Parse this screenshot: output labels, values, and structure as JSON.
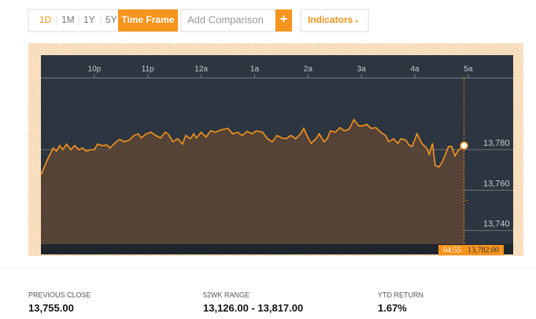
{
  "toolbar": {
    "ranges": [
      "1D",
      "1M",
      "1Y",
      "5Y"
    ],
    "time_frame": "Time Frame",
    "comparison_placeholder": "Add Comparison",
    "add": "+",
    "indicators": "Indicators"
  },
  "chart_data": {
    "type": "line",
    "color": "#f7941d",
    "x": [
      21.0,
      21.12,
      21.23,
      21.29,
      21.35,
      21.41,
      21.48,
      21.56,
      21.63,
      21.71,
      21.78,
      21.85,
      21.93,
      22.0,
      22.06,
      22.15,
      22.24,
      22.29,
      22.38,
      22.47,
      22.56,
      22.65,
      22.74,
      22.82,
      22.88,
      22.97,
      23.06,
      23.15,
      23.24,
      23.33,
      23.38,
      23.47,
      23.56,
      23.65,
      23.71,
      23.8,
      23.86,
      23.91,
      24.0,
      24.09,
      24.18,
      24.27,
      24.36,
      24.5,
      24.59,
      24.68,
      24.77,
      24.86,
      24.95,
      25.03,
      25.15,
      25.24,
      25.33,
      25.42,
      25.51,
      25.59,
      25.68,
      25.77,
      25.86,
      25.92,
      25.98,
      26.06,
      26.15,
      26.21,
      26.3,
      26.36,
      26.42,
      26.51,
      26.6,
      26.68,
      26.77,
      26.86,
      26.95,
      27.01,
      27.1,
      27.18,
      27.27,
      27.36,
      27.45,
      27.51,
      27.6,
      27.68,
      27.74,
      27.83,
      27.89,
      27.95,
      28.04,
      28.13,
      28.22,
      28.27,
      28.33,
      28.38,
      28.45,
      28.51,
      28.57,
      28.63,
      28.69,
      28.75,
      28.8,
      28.86,
      28.92
    ],
    "values": [
      13767.5,
      13774.9,
      13780.8,
      13779.2,
      13782.0,
      13780,
      13782.7,
      13780,
      13782.0,
      13780,
      13780.8,
      13779.2,
      13780,
      13780,
      13782.7,
      13782.0,
      13782.3,
      13780.8,
      13783.1,
      13785.1,
      13783.9,
      13784.7,
      13787.0,
      13787.8,
      13785.8,
      13787.8,
      13788.6,
      13787.0,
      13785.8,
      13788.6,
      13787.8,
      13783.9,
      13785.4,
      13782.7,
      13787.0,
      13785.4,
      13787.8,
      13785.8,
      13788.6,
      13786.2,
      13789.3,
      13788.6,
      13789.7,
      13790.5,
      13787.8,
      13788.6,
      13787.0,
      13789.0,
      13787.8,
      13789.3,
      13788.6,
      13785.4,
      13783.9,
      13787.0,
      13785.8,
      13785.4,
      13787.0,
      13785.4,
      13787.8,
      13790.5,
      13787.0,
      13783.1,
      13785.4,
      13787.8,
      13783.9,
      13785.4,
      13789.3,
      13788.6,
      13790.9,
      13789.3,
      13790.1,
      13794.8,
      13791.7,
      13791.7,
      13792.5,
      13790.5,
      13790.9,
      13788.6,
      13787.0,
      13783.9,
      13785.4,
      13783.1,
      13785.4,
      13784.7,
      13782.3,
      13781.6,
      13787.8,
      13783.1,
      13780.8,
      13777.7,
      13783.1,
      13772.2,
      13771.4,
      13773.8,
      13777.7,
      13781.6,
      13781.6,
      13776.9,
      13779.2,
      13780.8,
      13782
    ],
    "xlim": [
      21,
      29.84
    ],
    "xticks": [
      {
        "value": 22,
        "label": "10p"
      },
      {
        "value": 23,
        "label": "11p"
      },
      {
        "value": 24,
        "label": "12a"
      },
      {
        "value": 25,
        "label": "1a"
      },
      {
        "value": 26,
        "label": "2a"
      },
      {
        "value": 27,
        "label": "3a"
      },
      {
        "value": 28,
        "label": "4a"
      },
      {
        "value": 29,
        "label": "5a"
      }
    ],
    "ylim": [
      13733.3,
      13815.4
    ],
    "yticks": [
      {
        "value": 13740,
        "label": "13,740"
      },
      {
        "value": 13760,
        "label": "13,760"
      },
      {
        "value": 13780,
        "label": "13,780"
      }
    ],
    "grid": true,
    "previous_close_line": 13755,
    "last_time": "04:55",
    "last_value_label": "13,782.00"
  },
  "stats": [
    {
      "label": "PREVIOUS CLOSE",
      "value": "13,755.00"
    },
    {
      "label": "52WK RANGE",
      "value": "13,126.00 - 13,817.00"
    },
    {
      "label": "YTD RETURN",
      "value": "1.67%"
    }
  ]
}
